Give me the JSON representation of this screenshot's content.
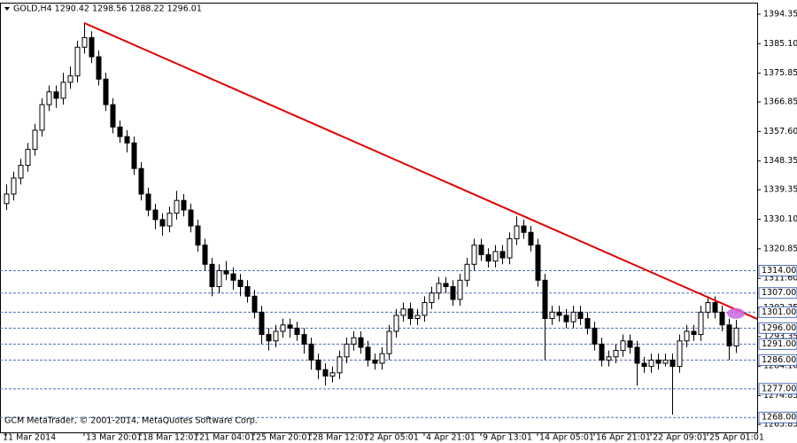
{
  "chart_data": {
    "type": "candlestick",
    "title": "GOLD,H4  1290.42 1298.56 1288.22 1296.01",
    "copyright": "GCM MetaTrader, © 2001-2014, MetaQuotes Software Corp.",
    "ylim": [
      1263.35,
      1397.95
    ],
    "yticks": [
      {
        "value": 1394.35,
        "label": "1394.35"
      },
      {
        "value": 1385.1,
        "label": "1385.10"
      },
      {
        "value": 1375.85,
        "label": "1375.85"
      },
      {
        "value": 1366.85,
        "label": "1366.85"
      },
      {
        "value": 1357.6,
        "label": "1357.60"
      },
      {
        "value": 1348.35,
        "label": "1348.35"
      },
      {
        "value": 1339.35,
        "label": "1339.35"
      },
      {
        "value": 1330.1,
        "label": "1330.10"
      },
      {
        "value": 1320.85,
        "label": "1320.85"
      },
      {
        "value": 1311.6,
        "label": "1311.60"
      },
      {
        "value": 1302.35,
        "label": "1302.35"
      },
      {
        "value": 1293.35,
        "label": "1293.35"
      },
      {
        "value": 1284.1,
        "label": "1284.10"
      },
      {
        "value": 1274.85,
        "label": "1274.85"
      },
      {
        "value": 1265.85,
        "label": "1265.85"
      }
    ],
    "categories": [
      "11 Mar 2014",
      null,
      null,
      null,
      null,
      null,
      null,
      null,
      null,
      null,
      null,
      "13 Mar 20:01",
      null,
      null,
      null,
      null,
      null,
      null,
      null,
      "18 Mar 12:01",
      null,
      null,
      null,
      null,
      null,
      null,
      null,
      "21 Mar 04:01",
      null,
      null,
      null,
      null,
      null,
      null,
      null,
      "25 Mar 20:01",
      null,
      null,
      null,
      null,
      null,
      null,
      null,
      "28 Mar 12:01",
      null,
      null,
      null,
      null,
      null,
      null,
      null,
      "2 Apr 05:01",
      null,
      null,
      null,
      null,
      null,
      null,
      null,
      "4 Apr 21:01",
      null,
      null,
      null,
      null,
      null,
      null,
      null,
      "9 Apr 13:01",
      null,
      null,
      null,
      null,
      null,
      null,
      null,
      "14 Apr 05:01",
      null,
      null,
      null,
      null,
      null,
      null,
      null,
      "16 Apr 21:01",
      null,
      null,
      null,
      null,
      null,
      null,
      null,
      "22 Apr 09:01",
      null,
      null,
      null,
      null,
      null,
      null,
      null,
      "25 Apr 01:01",
      null,
      null,
      null,
      null
    ],
    "ohlc": [
      [
        1335,
        1341,
        1333,
        1338
      ],
      [
        1338,
        1345,
        1336,
        1343
      ],
      [
        1343,
        1349,
        1341,
        1347
      ],
      [
        1347,
        1354,
        1345,
        1352
      ],
      [
        1352,
        1360,
        1350,
        1358
      ],
      [
        1358,
        1368,
        1356,
        1366
      ],
      [
        1366,
        1372,
        1364,
        1370
      ],
      [
        1370,
        1372,
        1365,
        1368
      ],
      [
        1368,
        1376,
        1366,
        1373
      ],
      [
        1373,
        1378,
        1371,
        1375
      ],
      [
        1375,
        1386,
        1373,
        1384
      ],
      [
        1384,
        1391.6,
        1382,
        1387
      ],
      [
        1387,
        1389,
        1379,
        1381
      ],
      [
        1381,
        1383,
        1372,
        1374
      ],
      [
        1374,
        1376,
        1364,
        1366
      ],
      [
        1366,
        1368,
        1357,
        1359
      ],
      [
        1359,
        1361,
        1354,
        1356
      ],
      [
        1356,
        1358,
        1351,
        1354
      ],
      [
        1354,
        1356,
        1344,
        1346
      ],
      [
        1346,
        1348,
        1336,
        1338
      ],
      [
        1338,
        1340,
        1331,
        1333
      ],
      [
        1333,
        1335,
        1327,
        1330
      ],
      [
        1330,
        1332,
        1325,
        1328
      ],
      [
        1328,
        1334,
        1326,
        1332
      ],
      [
        1332,
        1339,
        1330,
        1336
      ],
      [
        1336,
        1338,
        1331,
        1333
      ],
      [
        1333,
        1335,
        1326,
        1328
      ],
      [
        1328,
        1330,
        1320,
        1322
      ],
      [
        1322,
        1324,
        1314,
        1316
      ],
      [
        1316,
        1318,
        1306,
        1309
      ],
      [
        1309,
        1316,
        1307,
        1314
      ],
      [
        1314,
        1317,
        1311,
        1313
      ],
      [
        1313,
        1315,
        1308,
        1311
      ],
      [
        1311,
        1313,
        1306,
        1309
      ],
      [
        1309,
        1311,
        1304,
        1306
      ],
      [
        1306,
        1308,
        1299,
        1301
      ],
      [
        1301,
        1303,
        1291,
        1294
      ],
      [
        1294,
        1296,
        1289,
        1292
      ],
      [
        1292,
        1297,
        1290,
        1295
      ],
      [
        1295,
        1299,
        1293,
        1297
      ],
      [
        1297,
        1299,
        1293,
        1296
      ],
      [
        1296,
        1298,
        1292,
        1294
      ],
      [
        1294,
        1296,
        1288,
        1291
      ],
      [
        1291,
        1293,
        1283,
        1286
      ],
      [
        1286,
        1288,
        1280,
        1283
      ],
      [
        1283,
        1285,
        1278,
        1281
      ],
      [
        1281,
        1284,
        1279,
        1282
      ],
      [
        1282,
        1289,
        1280,
        1287
      ],
      [
        1287,
        1293,
        1285,
        1291
      ],
      [
        1291,
        1295,
        1289,
        1293
      ],
      [
        1293,
        1295,
        1288,
        1290
      ],
      [
        1290,
        1292,
        1284,
        1286
      ],
      [
        1286,
        1288,
        1283,
        1285
      ],
      [
        1285,
        1290,
        1283,
        1288
      ],
      [
        1288,
        1297,
        1286,
        1295
      ],
      [
        1295,
        1302,
        1293,
        1300
      ],
      [
        1300,
        1304,
        1298,
        1302
      ],
      [
        1302,
        1304,
        1297,
        1299
      ],
      [
        1299,
        1302,
        1297,
        1300
      ],
      [
        1300,
        1306,
        1298,
        1304
      ],
      [
        1304,
        1309,
        1302,
        1307
      ],
      [
        1307,
        1312,
        1305,
        1310
      ],
      [
        1310,
        1312,
        1307,
        1309
      ],
      [
        1309,
        1311,
        1303,
        1305
      ],
      [
        1305,
        1313,
        1303,
        1311
      ],
      [
        1311,
        1318,
        1309,
        1316
      ],
      [
        1316,
        1324,
        1314,
        1322
      ],
      [
        1322,
        1324,
        1317,
        1319
      ],
      [
        1319,
        1321,
        1315,
        1317
      ],
      [
        1317,
        1322,
        1315,
        1320
      ],
      [
        1320,
        1322,
        1316,
        1318
      ],
      [
        1318,
        1326,
        1316,
        1324
      ],
      [
        1324,
        1331,
        1322,
        1328
      ],
      [
        1328,
        1330,
        1324,
        1326
      ],
      [
        1326,
        1328,
        1320,
        1322
      ],
      [
        1322,
        1324,
        1309,
        1311
      ],
      [
        1311,
        1313,
        1286,
        1299
      ],
      [
        1299,
        1303,
        1297,
        1301
      ],
      [
        1301,
        1303,
        1298,
        1300
      ],
      [
        1300,
        1302,
        1296,
        1298
      ],
      [
        1298,
        1303,
        1296,
        1301
      ],
      [
        1301,
        1303,
        1297,
        1299
      ],
      [
        1299,
        1301,
        1294,
        1296
      ],
      [
        1296,
        1298,
        1289,
        1291
      ],
      [
        1291,
        1293,
        1284,
        1286
      ],
      [
        1286,
        1289,
        1284,
        1287
      ],
      [
        1287,
        1291,
        1285,
        1289
      ],
      [
        1289,
        1294,
        1287,
        1292
      ],
      [
        1292,
        1294,
        1288,
        1290
      ],
      [
        1290,
        1292,
        1278,
        1285
      ],
      [
        1285,
        1287,
        1282,
        1284
      ],
      [
        1284,
        1288,
        1282,
        1286
      ],
      [
        1286,
        1288,
        1283,
        1285
      ],
      [
        1285,
        1288,
        1284,
        1286
      ],
      [
        1286,
        1288,
        1268.9,
        1284
      ],
      [
        1284,
        1294,
        1282,
        1292
      ],
      [
        1292,
        1297,
        1290,
        1295
      ],
      [
        1295,
        1297,
        1292,
        1294
      ],
      [
        1294,
        1303,
        1292,
        1301
      ],
      [
        1301,
        1306,
        1299,
        1304
      ],
      [
        1304,
        1306,
        1299,
        1301
      ],
      [
        1301,
        1303,
        1295,
        1297
      ],
      [
        1297,
        1299,
        1286,
        1290.42
      ],
      [
        1290.42,
        1298.56,
        1288.22,
        1296.01
      ]
    ],
    "levels": [
      {
        "value": 1314,
        "label": "1314.00"
      },
      {
        "value": 1307,
        "label": "1307.00"
      },
      {
        "value": 1301,
        "label": "1301.00"
      },
      {
        "value": 1296,
        "label": "1296.00"
      },
      {
        "value": 1291,
        "label": "1291.00"
      },
      {
        "value": 1286,
        "label": "1286.00"
      },
      {
        "value": 1277,
        "label": "1277.00"
      },
      {
        "value": 1268,
        "label": "1268.00"
      }
    ],
    "level_color": "#4a6fb5",
    "trendline": {
      "x": [
        11,
        106
      ],
      "y": [
        1391.6,
        1298.9
      ],
      "color": "#e00000"
    },
    "marker": {
      "x": 103,
      "y": 1300.6,
      "color": "#cc66dd"
    }
  }
}
